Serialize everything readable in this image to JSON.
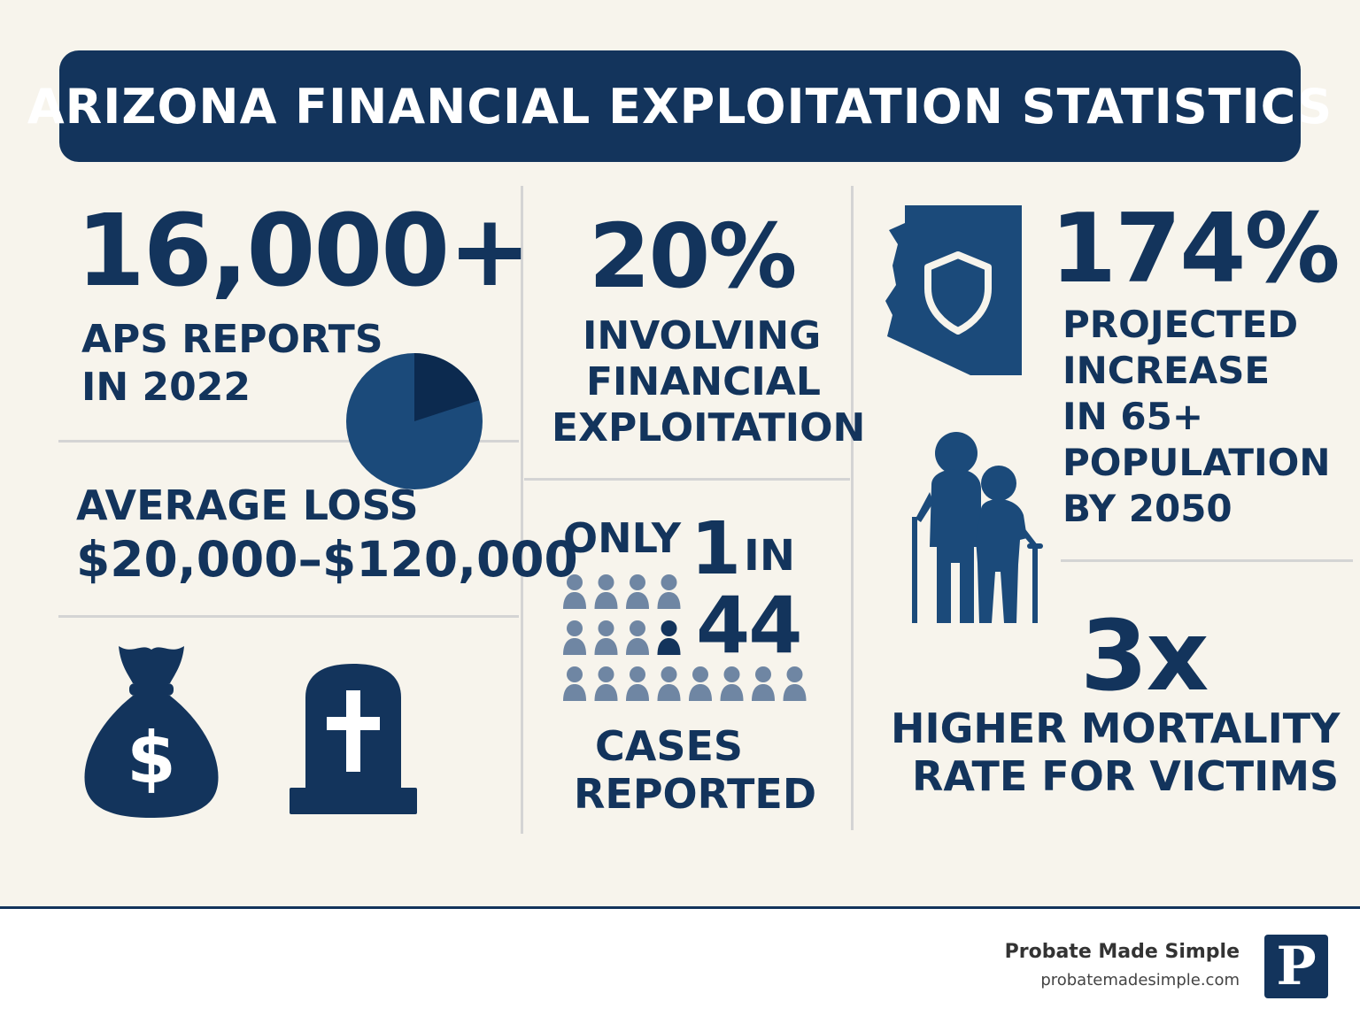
{
  "title": "ARIZONA FINANCIAL EXPLOITATION STATISTICS",
  "stats": {
    "reports": {
      "value": "16,000+",
      "label_1": "APS REPORTS",
      "label_2": "IN 2022"
    },
    "loss": {
      "label": "AVERAGE LOSS",
      "value": "$20,000–$120,000"
    },
    "financial_share": {
      "value": "20%",
      "label_1": "INVOLVING",
      "label_2": "FINANCIAL",
      "label_3": "EXPLOITATION"
    },
    "reporting": {
      "word_only": "ONLY",
      "num_1": "1",
      "word_in": "IN",
      "num_44": "44",
      "label_1": "CASES",
      "label_2": "REPORTED"
    },
    "growth": {
      "value": "174%",
      "label_1": "PROJECTED",
      "label_2": "INCREASE",
      "label_3": "IN 65+",
      "label_4": "POPULATION",
      "label_5": "BY 2050"
    },
    "mortality": {
      "value": "3x",
      "label_1": "HIGHER MORTALITY",
      "label_2": "RATE FOR VICTIMS"
    }
  },
  "pie_highlight_fraction": 0.2,
  "icons": [
    "pie-chart-icon",
    "money-bag-icon",
    "gravestone-icon",
    "people-grid-icon",
    "arizona-shield-icon",
    "elderly-couple-icon"
  ],
  "colors": {
    "navy": "#13345c",
    "pie_dark": "#0c2a4f",
    "people_gray": "#6f86a3",
    "background": "#f7f4ec"
  },
  "footer": {
    "brand": "Probate Made Simple",
    "url": "probatemadesimple.com",
    "logo_letter": "P"
  }
}
